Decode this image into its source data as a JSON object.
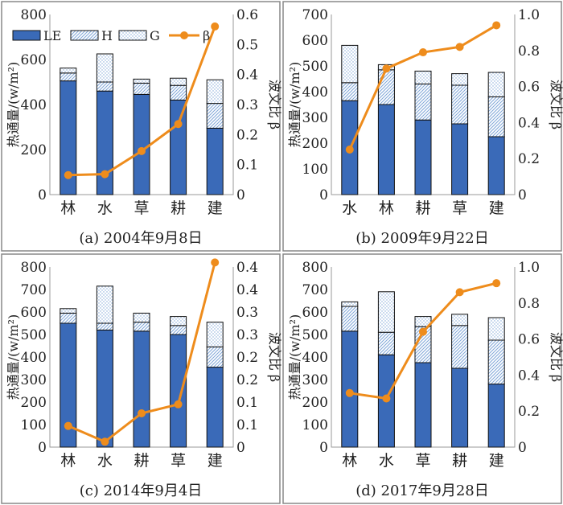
{
  "chart_data": [
    {
      "type": "bar",
      "caption": "(a) 2004年9月8日",
      "categories": [
        "林",
        "水",
        "草",
        "耕",
        "建"
      ],
      "ylabel": "热通量/(w/m²)",
      "y2label": "波文比 β",
      "ylim": [
        0,
        800
      ],
      "yticks": [
        0,
        200,
        400,
        600,
        800
      ],
      "y2lim": [
        0,
        0.6
      ],
      "y2ticks": [
        "0",
        "0.1",
        "0.2",
        "0.3",
        "0.4",
        "0.5",
        "0.6"
      ],
      "legend": [
        "LE",
        "H",
        "G",
        "β"
      ],
      "legend_position": "top",
      "series": [
        {
          "name": "LE",
          "values": [
            505,
            460,
            445,
            420,
            295
          ]
        },
        {
          "name": "H",
          "values": [
            35,
            40,
            50,
            65,
            110
          ]
        },
        {
          "name": "G",
          "values": [
            22,
            125,
            18,
            32,
            105
          ]
        }
      ],
      "line": {
        "name": "β",
        "values": [
          0.065,
          0.068,
          0.145,
          0.235,
          0.56
        ]
      }
    },
    {
      "type": "bar",
      "caption": "(b) 2009年9月22日",
      "categories": [
        "水",
        "林",
        "耕",
        "草",
        "建"
      ],
      "ylabel": "热通量/(w/m²)",
      "y2label": "波文比 β",
      "ylim": [
        0,
        700
      ],
      "yticks": [
        0,
        100,
        200,
        300,
        400,
        500,
        600,
        700
      ],
      "y2lim": [
        0,
        1.0
      ],
      "y2ticks": [
        "0",
        "0.2",
        "0.4",
        "0.6",
        "0.8",
        "1.0"
      ],
      "series": [
        {
          "name": "LE",
          "values": [
            365,
            350,
            290,
            275,
            225
          ]
        },
        {
          "name": "H",
          "values": [
            70,
            135,
            140,
            150,
            155
          ]
        },
        {
          "name": "G",
          "values": [
            145,
            20,
            50,
            45,
            95
          ]
        }
      ],
      "line": {
        "name": "β",
        "values": [
          0.25,
          0.7,
          0.79,
          0.82,
          0.94
        ]
      }
    },
    {
      "type": "bar",
      "caption": "(c) 2014年9月4日",
      "categories": [
        "林",
        "水",
        "耕",
        "草",
        "建"
      ],
      "ylabel": "热通量/(w/m²)",
      "y2label": "波文比 β",
      "ylim": [
        0,
        800
      ],
      "yticks": [
        0,
        100,
        200,
        300,
        400,
        500,
        600,
        700,
        800
      ],
      "y2lim": [
        0,
        0.4
      ],
      "y2ticks": [
        "0",
        "0.1",
        "0.1",
        "0.2",
        "0.2",
        "0.3",
        "0.3",
        "0.4",
        "0.4"
      ],
      "series": [
        {
          "name": "LE",
          "values": [
            550,
            520,
            515,
            500,
            355
          ]
        },
        {
          "name": "H",
          "values": [
            45,
            30,
            40,
            40,
            90
          ]
        },
        {
          "name": "G",
          "values": [
            20,
            165,
            40,
            40,
            110
          ]
        }
      ],
      "line": {
        "name": "β",
        "values": [
          0.047,
          0.012,
          0.075,
          0.095,
          0.41
        ]
      }
    },
    {
      "type": "bar",
      "caption": "(d) 2017年9月28日",
      "categories": [
        "林",
        "水",
        "草",
        "耕",
        "建"
      ],
      "ylabel": "热通量/(w/m²)",
      "y2label": "波文比 β",
      "ylim": [
        0,
        800
      ],
      "yticks": [
        0,
        100,
        200,
        300,
        400,
        500,
        600,
        700,
        800
      ],
      "y2lim": [
        0,
        1.0
      ],
      "y2ticks": [
        "0",
        "0.2",
        "0.4",
        "0.6",
        "0.8",
        "1.0"
      ],
      "series": [
        {
          "name": "LE",
          "values": [
            515,
            410,
            375,
            350,
            280
          ]
        },
        {
          "name": "H",
          "values": [
            110,
            100,
            160,
            190,
            195
          ]
        },
        {
          "name": "G",
          "values": [
            20,
            180,
            45,
            50,
            100
          ]
        }
      ],
      "line": {
        "name": "β",
        "values": [
          0.3,
          0.27,
          0.64,
          0.86,
          0.91
        ]
      }
    }
  ],
  "colors": {
    "LE": "#3a6ab8",
    "H": "#7fa6d8",
    "G": "#7fa6d8",
    "beta": "#ee8c1c",
    "panel_border": "#888888"
  }
}
